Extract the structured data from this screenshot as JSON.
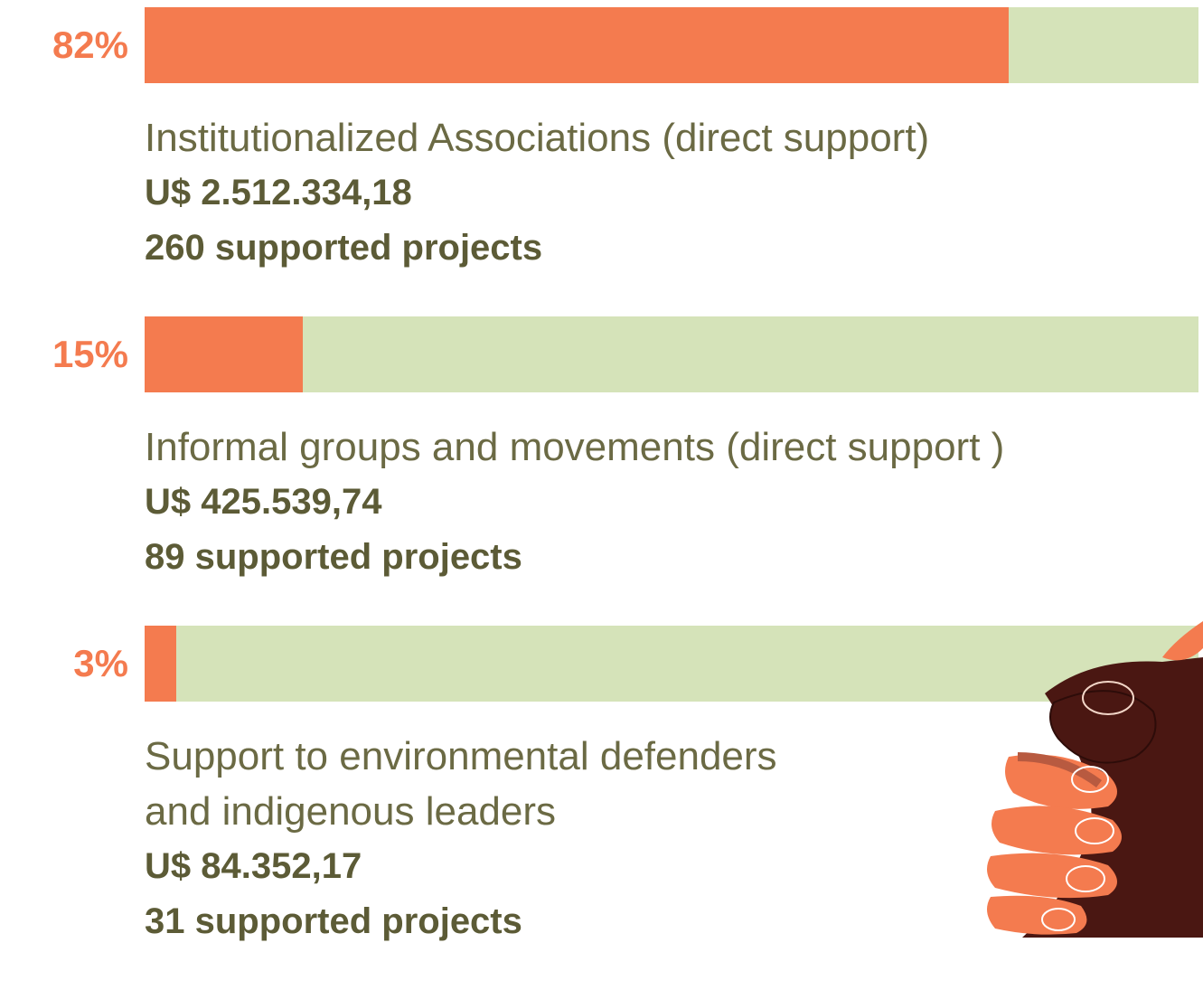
{
  "chart_data": {
    "type": "bar",
    "categories": [
      "Institutionalized Associations (direct support)",
      "Informal groups and movements (direct support )",
      "Support to environmental defenders\nand indigenous leaders"
    ],
    "values": [
      82,
      15,
      3
    ],
    "value_labels": [
      "82%",
      "15%",
      "3%"
    ],
    "amounts": [
      "U$ 2.512.334,18",
      "U$ 425.539,74",
      "U$ 84.352,17"
    ],
    "projects": [
      "260 supported projects",
      "89 supported projects",
      "31 supported projects"
    ],
    "xlim": [
      0,
      100
    ],
    "color": "#f47b4f",
    "track_color": "#d5e3b9"
  }
}
